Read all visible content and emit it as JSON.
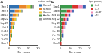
{
  "chart_data": [
    {
      "type": "bar",
      "title": "A",
      "orientation": "horizontal",
      "stacked": true,
      "grid": false,
      "legend": "upper right",
      "legend_title": "Infection setting",
      "x_label": "No. cases",
      "categories": [
        "Sep 1",
        "Sep 8",
        "Sep 15",
        "Sep 22",
        "Sep 29",
        "Oct 6",
        "Oct 13",
        "Oct 20",
        "Oct 27",
        "Nov 3"
      ],
      "xlim": [
        0,
        30
      ],
      "xticks": [
        0,
        10,
        20,
        30
      ],
      "series": [
        {
          "name": "Household",
          "color": "#2f6fb0",
          "values": [
            10,
            6,
            4,
            3,
            2,
            2,
            1,
            1,
            1,
            0
          ]
        },
        {
          "name": "School",
          "color": "#e8862a",
          "values": [
            8,
            4,
            3,
            2,
            2,
            1,
            1,
            1,
            0,
            1
          ]
        },
        {
          "name": "Community",
          "color": "#f2c12e",
          "values": [
            4,
            2,
            2,
            2,
            1,
            1,
            1,
            0,
            1,
            0
          ]
        },
        {
          "name": "Health care",
          "color": "#4f9a45",
          "values": [
            2,
            1,
            0,
            1,
            0,
            1,
            0,
            1,
            0,
            0
          ]
        },
        {
          "name": "Unknown",
          "color": "#9a9a9a",
          "values": [
            2,
            1,
            1,
            0,
            1,
            0,
            0,
            0,
            0,
            0
          ]
        }
      ]
    },
    {
      "type": "bar",
      "title": "B",
      "orientation": "horizontal",
      "stacked": true,
      "grid": false,
      "legend": "upper right",
      "legend_title": "Age group, y",
      "x_label": "No. cases",
      "categories": [
        "Sep 1",
        "Sep 8",
        "Sep 15",
        "Sep 22",
        "Sep 29",
        "Oct 6",
        "Oct 13",
        "Oct 20",
        "Oct 27",
        "Nov 3"
      ],
      "xlim": [
        0,
        30
      ],
      "xticks": [
        0,
        10,
        20,
        30
      ],
      "series": [
        {
          "name": "0–4",
          "color": "#3a9a4a",
          "values": [
            12,
            6,
            4,
            3,
            2,
            2,
            1,
            1,
            1,
            0
          ]
        },
        {
          "name": "5–9",
          "color": "#d9332b",
          "values": [
            6,
            4,
            3,
            2,
            2,
            1,
            1,
            1,
            0,
            1
          ]
        },
        {
          "name": "10–17",
          "color": "#f08cb8",
          "values": [
            5,
            2,
            2,
            2,
            1,
            1,
            1,
            0,
            1,
            0
          ]
        },
        {
          "name": "≥18",
          "color": "#3b5fb0",
          "values": [
            3,
            2,
            1,
            1,
            1,
            1,
            0,
            1,
            0,
            0
          ]
        }
      ]
    }
  ]
}
